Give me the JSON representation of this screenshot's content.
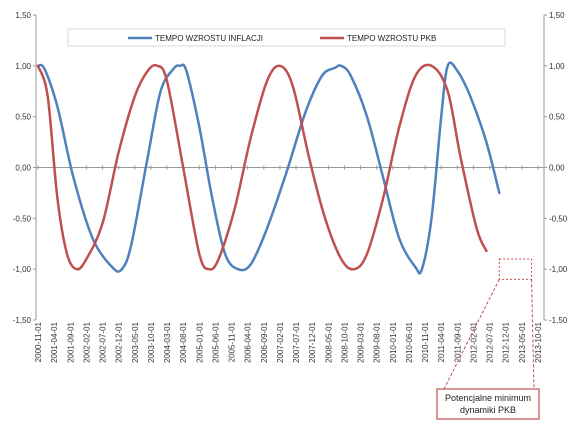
{
  "chart_data": {
    "type": "line",
    "yaxis": {
      "min": -1.5,
      "max": 1.5,
      "step": 0.5,
      "tick_labels": [
        "1,50",
        "1,00",
        "0,50",
        "0,00",
        "-0,50",
        "-1,00",
        "-1,50"
      ],
      "secondary_tick_labels": [
        "1,50",
        "1,00",
        "0,50",
        "0,00",
        "-0,50",
        "-1,00",
        "-1,50"
      ]
    },
    "xaxis": {
      "start": "2000-11-01",
      "end": "2013-10-01",
      "step_months": 5,
      "tick_labels": [
        "2000-11-01",
        "2001-04-01",
        "2001-09-01",
        "2002-02-01",
        "2002-07-01",
        "2002-12-01",
        "2003-05-01",
        "2003-10-01",
        "2004-03-01",
        "2004-08-01",
        "2005-01-01",
        "2005-06-01",
        "2005-11-01",
        "2006-04-01",
        "2006-09-01",
        "2007-02-01",
        "2007-07-01",
        "2007-12-01",
        "2008-05-01",
        "2008-10-01",
        "2009-03-01",
        "2009-08-01",
        "2010-01-01",
        "2010-06-01",
        "2010-11-01",
        "2011-04-01",
        "2011-09-01",
        "2012-02-01",
        "2012-07-01",
        "2012-12-01",
        "2013-05-01",
        "2013-10-01"
      ]
    },
    "grid": false,
    "legend": "top",
    "series": [
      {
        "name": "TEMPO WZROSTU  INFLACJI",
        "color": "#4f81bd",
        "points": [
          [
            "2000-11-01",
            1.0
          ],
          [
            "2001-01-01",
            0.97
          ],
          [
            "2001-05-01",
            0.6
          ],
          [
            "2001-10-01",
            -0.1
          ],
          [
            "2002-04-01",
            -0.7
          ],
          [
            "2002-10-01",
            -0.98
          ],
          [
            "2003-01-01",
            -1.0
          ],
          [
            "2003-04-01",
            -0.75
          ],
          [
            "2003-09-01",
            0.1
          ],
          [
            "2004-01-01",
            0.75
          ],
          [
            "2004-05-01",
            0.97
          ],
          [
            "2004-07-01",
            1.0
          ],
          [
            "2004-09-01",
            0.95
          ],
          [
            "2005-01-01",
            0.4
          ],
          [
            "2005-05-01",
            -0.3
          ],
          [
            "2005-09-01",
            -0.85
          ],
          [
            "2006-01-01",
            -1.0
          ],
          [
            "2006-05-01",
            -0.95
          ],
          [
            "2006-10-01",
            -0.6
          ],
          [
            "2007-04-01",
            -0.05
          ],
          [
            "2007-10-01",
            0.55
          ],
          [
            "2008-03-01",
            0.9
          ],
          [
            "2008-07-01",
            0.98
          ],
          [
            "2008-09-01",
            1.0
          ],
          [
            "2008-12-01",
            0.9
          ],
          [
            "2009-05-01",
            0.5
          ],
          [
            "2009-10-01",
            -0.1
          ],
          [
            "2010-03-01",
            -0.7
          ],
          [
            "2010-08-01",
            -0.98
          ],
          [
            "2010-10-01",
            -1.0
          ],
          [
            "2011-01-01",
            -0.5
          ],
          [
            "2011-04-01",
            0.5
          ],
          [
            "2011-06-01",
            1.0
          ],
          [
            "2011-09-01",
            0.95
          ],
          [
            "2012-01-01",
            0.7
          ],
          [
            "2012-06-01",
            0.25
          ],
          [
            "2012-10-01",
            -0.25
          ]
        ]
      },
      {
        "name": "TEMPO WZROSTU  PKB",
        "color": "#c0504d",
        "points": [
          [
            "2000-11-01",
            1.0
          ],
          [
            "2001-02-01",
            0.7
          ],
          [
            "2001-05-01",
            -0.3
          ],
          [
            "2001-08-01",
            -0.85
          ],
          [
            "2001-11-01",
            -1.0
          ],
          [
            "2002-02-01",
            -0.9
          ],
          [
            "2002-07-01",
            -0.55
          ],
          [
            "2002-12-01",
            0.15
          ],
          [
            "2003-05-01",
            0.7
          ],
          [
            "2003-09-01",
            0.95
          ],
          [
            "2003-12-01",
            1.0
          ],
          [
            "2004-03-01",
            0.85
          ],
          [
            "2004-08-01",
            0.0
          ],
          [
            "2005-01-01",
            -0.85
          ],
          [
            "2005-04-01",
            -1.0
          ],
          [
            "2005-07-01",
            -0.9
          ],
          [
            "2005-12-01",
            -0.4
          ],
          [
            "2006-05-01",
            0.3
          ],
          [
            "2006-10-01",
            0.85
          ],
          [
            "2007-02-01",
            1.0
          ],
          [
            "2007-06-01",
            0.8
          ],
          [
            "2007-11-01",
            0.1
          ],
          [
            "2008-04-01",
            -0.5
          ],
          [
            "2008-09-01",
            -0.9
          ],
          [
            "2009-01-01",
            -1.0
          ],
          [
            "2009-05-01",
            -0.85
          ],
          [
            "2009-10-01",
            -0.3
          ],
          [
            "2010-03-01",
            0.4
          ],
          [
            "2010-08-01",
            0.9
          ],
          [
            "2011-01-01",
            1.0
          ],
          [
            "2011-06-01",
            0.75
          ],
          [
            "2011-10-01",
            0.1
          ],
          [
            "2012-03-01",
            -0.6
          ],
          [
            "2012-06-01",
            -0.82
          ]
        ]
      }
    ],
    "annotation": {
      "text_lines": [
        "Potencjalne minimum",
        "dynamiki PKB"
      ],
      "highlight": {
        "x_from": "2012-10-01",
        "x_to": "2013-08-01",
        "y_from": -0.9,
        "y_to": -1.1
      }
    }
  }
}
